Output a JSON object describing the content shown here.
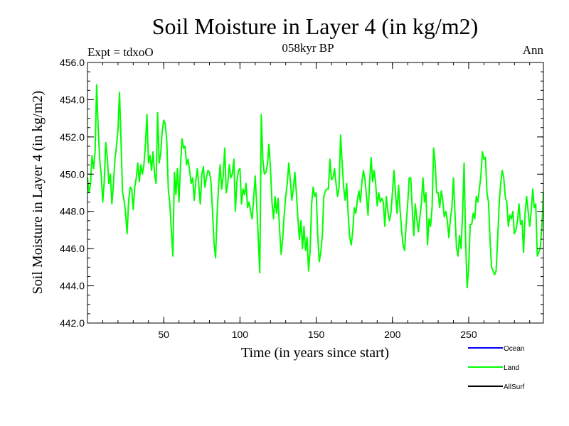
{
  "chart_data": {
    "type": "line",
    "title": "Soil Moisture in Layer 4 (in kg/m2)",
    "subtitle": "058kyr BP",
    "left_label": "Expt = tdxoO",
    "right_label": "Ann",
    "xlabel": "Time (in years since start)",
    "ylabel": "Soil Moisture in Layer 4 (in kg/m2)",
    "xlim": [
      0,
      299
    ],
    "ylim": [
      442.0,
      456.0
    ],
    "xticks": [
      50,
      100,
      150,
      200,
      250
    ],
    "xtick_labels": [
      "50",
      "100",
      "150",
      "200",
      "250"
    ],
    "yticks": [
      442,
      444,
      446,
      448,
      450,
      452,
      454,
      456
    ],
    "ytick_labels": [
      "442.0",
      "444.0",
      "446.0",
      "448.0",
      "450.0",
      "452.0",
      "454.0",
      "456.0"
    ],
    "grid": false,
    "legend_position": "bottom-right",
    "legend": [
      {
        "name": "Ocean",
        "color": "#0000ff"
      },
      {
        "name": "Land",
        "color": "#00ff00"
      },
      {
        "name": "AllSurf",
        "color": "#000000"
      }
    ],
    "series": [
      {
        "name": "Land",
        "color": "#00ff00",
        "x_start": 0,
        "x_step": 1,
        "values": [
          449.8,
          449.0,
          449.5,
          451.0,
          450.3,
          451.2,
          454.8,
          452.5,
          450.8,
          450.0,
          448.5,
          449.6,
          451.7,
          450.9,
          449.5,
          450.0,
          448.4,
          449.4,
          450.8,
          451.5,
          452.4,
          454.4,
          451.8,
          449.0,
          448.6,
          447.9,
          446.8,
          448.6,
          449.3,
          449.2,
          448.1,
          449.3,
          449.8,
          450.6,
          449.6,
          450.5,
          450.0,
          450.5,
          451.6,
          453.2,
          450.6,
          451.0,
          450.2,
          451.2,
          450.0,
          449.5,
          453.3,
          450.6,
          451.1,
          452.3,
          452.9,
          452.7,
          451.8,
          449.2,
          448.4,
          447.0,
          445.6,
          450.1,
          448.9,
          450.3,
          448.5,
          450.5,
          451.9,
          451.4,
          451.5,
          450.5,
          450.8,
          450.2,
          449.5,
          449.8,
          448.6,
          449.6,
          450.3,
          449.4,
          448.4,
          450.0,
          450.4,
          449.3,
          449.8,
          450.2,
          450.1,
          449.6,
          448.0,
          446.3,
          445.5,
          447.8,
          449.4,
          450.5,
          449.2,
          449.9,
          451.4,
          449.0,
          449.5,
          450.5,
          449.8,
          450.0,
          450.8,
          448.0,
          449.6,
          450.2,
          450.3,
          448.4,
          449.2,
          448.9,
          449.5,
          448.2,
          448.5,
          448.0,
          447.6,
          448.7,
          449.9,
          448.3,
          446.6,
          444.7,
          453.2,
          450.8,
          450.0,
          450.1,
          450.5,
          451.6,
          450.3,
          448.5,
          447.6,
          448.8,
          447.9,
          448.7,
          447.0,
          445.7,
          446.5,
          447.8,
          448.8,
          449.5,
          450.6,
          449.7,
          448.6,
          449.2,
          450.1,
          449.0,
          447.6,
          446.5,
          447.5,
          446.0,
          447.2,
          445.9,
          446.6,
          444.8,
          445.9,
          448.4,
          449.3,
          448.8,
          449.0,
          446.7,
          445.3,
          445.8,
          446.7,
          448.8,
          449.1,
          449.2,
          449.2,
          450.8,
          449.7,
          449.8,
          450.3,
          449.5,
          448.8,
          449.3,
          452.1,
          450.6,
          449.3,
          448.6,
          449.5,
          447.8,
          446.6,
          446.2,
          447.0,
          448.2,
          447.9,
          448.6,
          449.1,
          448.5,
          449.6,
          450.2,
          449.7,
          448.8,
          447.8,
          449.5,
          450.9,
          449.6,
          450.2,
          449.5,
          448.3,
          449.0,
          448.5,
          448.7,
          448.5,
          447.2,
          448.8,
          448.0,
          447.5,
          447.9,
          449.0,
          450.2,
          449.0,
          447.9,
          449.4,
          448.1,
          447.0,
          446.2,
          445.9,
          447.3,
          448.4,
          449.8,
          449.8,
          448.1,
          446.7,
          448.4,
          447.6,
          446.9,
          447.7,
          448.4,
          449.8,
          448.5,
          449.0,
          446.2,
          447.6,
          447.2,
          448.2,
          451.4,
          450.6,
          449.0,
          449.0,
          448.2,
          449.1,
          448.6,
          447.7,
          448.0,
          447.5,
          446.6,
          447.6,
          448.2,
          449.8,
          447.9,
          446.1,
          445.6,
          446.7,
          446.0,
          447.9,
          450.6,
          446.4,
          443.9,
          445.0,
          447.3,
          447.3,
          447.9,
          447.6,
          448.8,
          448.5,
          449.2,
          449.9,
          451.2,
          450.8,
          450.9,
          449.0,
          448.5,
          446.5,
          445.0,
          444.8,
          444.6,
          444.8,
          446.5,
          448.4,
          449.5,
          450.2,
          449.8,
          448.8,
          448.5,
          447.2,
          447.8,
          447.6,
          448.0,
          446.8,
          447.0,
          447.5,
          448.4,
          447.3,
          447.5,
          445.8,
          447.9,
          448.8,
          448.0,
          447.2,
          448.0,
          449.2,
          448.2,
          448.4,
          445.6,
          445.8,
          446.1,
          447.2,
          449.0
        ]
      }
    ]
  }
}
